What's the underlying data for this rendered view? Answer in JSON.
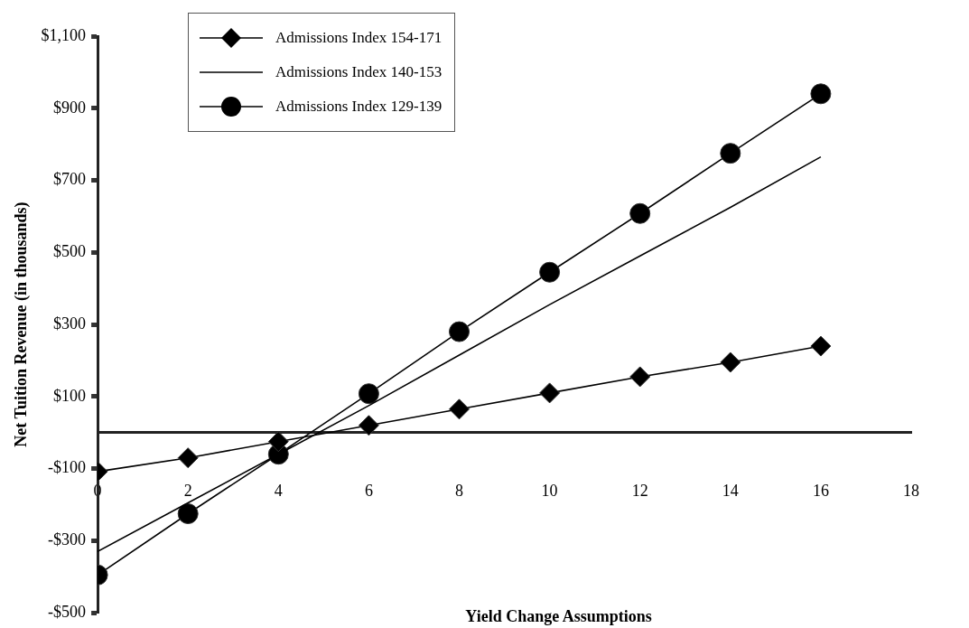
{
  "chart_data": {
    "type": "line",
    "xlabel": "Yield Change Assumptions",
    "ylabel": "Net Tuition Revenue (in thousands)",
    "x": [
      0,
      2,
      4,
      6,
      8,
      10,
      12,
      14,
      16
    ],
    "series": [
      {
        "name": "Admissions Index 154-171",
        "color": "#000000",
        "marker": "diamond",
        "values": [
          -108,
          -70,
          -25,
          20,
          65,
          110,
          155,
          195,
          240
        ]
      },
      {
        "name": "Admissions Index 140-153",
        "color": "#000000",
        "marker": "none",
        "values": [
          -330,
          -195,
          -60,
          75,
          215,
          355,
          490,
          625,
          765
        ]
      },
      {
        "name": "Admissions Index 129-139",
        "color": "#000000",
        "marker": "circle",
        "values": [
          -395,
          -225,
          -60,
          108,
          280,
          445,
          608,
          775,
          940
        ]
      }
    ],
    "xlim": [
      0,
      18
    ],
    "xticks": [
      0,
      2,
      4,
      6,
      8,
      10,
      12,
      14,
      16,
      18
    ],
    "ylim": [
      -500,
      1100
    ],
    "yticks": [
      {
        "value": 1100,
        "label": "$1,100"
      },
      {
        "value": 900,
        "label": "$900"
      },
      {
        "value": 700,
        "label": "$700"
      },
      {
        "value": 500,
        "label": "$500"
      },
      {
        "value": 300,
        "label": "$300"
      },
      {
        "value": 100,
        "label": "$100"
      },
      {
        "value": -100,
        "label": "-$100"
      },
      {
        "value": -300,
        "label": "-$300"
      },
      {
        "value": -500,
        "label": "-$500"
      }
    ],
    "grid": false,
    "legend": "top left",
    "line_style": "solid"
  }
}
